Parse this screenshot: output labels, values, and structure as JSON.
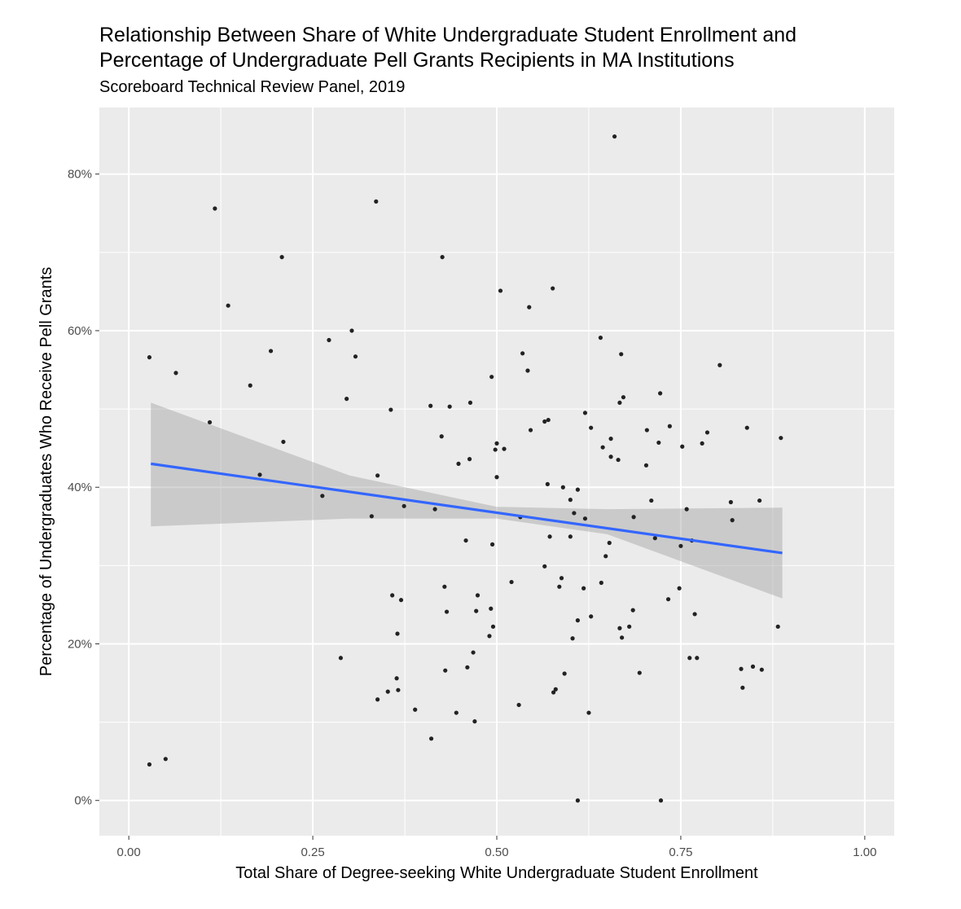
{
  "chart_data": {
    "type": "scatter",
    "title_lines": [
      "Relationship Between Share of White Undergraduate Student Enrollment and",
      "Percentage of Undergraduate Pell Grants Recipients in MA Institutions"
    ],
    "subtitle": "Scoreboard Technical Review Panel, 2019",
    "xlabel": "Total Share of Degree-seeking White Undergraduate Student Enrollment",
    "ylabel": "Percentage of Undergraduates Who Receive Pell Grants",
    "xlim": [
      -0.04,
      1.04
    ],
    "ylim": [
      -4.5,
      88.5
    ],
    "x_ticks": [
      0,
      0.25,
      0.5,
      0.75,
      1.0
    ],
    "x_tick_labels": [
      "0.00",
      "0.25",
      "0.50",
      "0.75",
      "1.00"
    ],
    "y_ticks": [
      0,
      20,
      40,
      60,
      80
    ],
    "y_tick_labels": [
      "0%",
      "20%",
      "40%",
      "60%",
      "80%"
    ],
    "grid": true,
    "legend": "none",
    "colors": {
      "panel": "#ebebeb",
      "grid": "#ffffff",
      "point": "#222222",
      "fit_line": "#3366ff",
      "confidence_band": "#999999"
    },
    "fit": {
      "x": [
        0.03,
        0.888
      ],
      "y": [
        43.0,
        31.6
      ],
      "band_x": [
        0.03,
        0.3,
        0.5,
        0.65,
        0.888
      ],
      "band_lower": [
        35.0,
        36.0,
        36.0,
        34.0,
        25.8
      ],
      "band_upper": [
        50.8,
        41.5,
        37.5,
        37.2,
        37.4
      ]
    },
    "points": [
      [
        0.028,
        56.6
      ],
      [
        0.028,
        4.6
      ],
      [
        0.05,
        5.3
      ],
      [
        0.064,
        54.6
      ],
      [
        0.11,
        48.3
      ],
      [
        0.117,
        75.6
      ],
      [
        0.135,
        63.2
      ],
      [
        0.165,
        53.0
      ],
      [
        0.178,
        41.6
      ],
      [
        0.193,
        57.4
      ],
      [
        0.208,
        69.4
      ],
      [
        0.21,
        45.8
      ],
      [
        0.263,
        38.9
      ],
      [
        0.272,
        58.8
      ],
      [
        0.288,
        18.2
      ],
      [
        0.296,
        51.3
      ],
      [
        0.303,
        60.0
      ],
      [
        0.308,
        56.7
      ],
      [
        0.33,
        36.3
      ],
      [
        0.336,
        76.5
      ],
      [
        0.338,
        41.5
      ],
      [
        0.338,
        12.9
      ],
      [
        0.352,
        13.9
      ],
      [
        0.356,
        49.9
      ],
      [
        0.358,
        26.2
      ],
      [
        0.364,
        15.6
      ],
      [
        0.365,
        21.3
      ],
      [
        0.366,
        14.1
      ],
      [
        0.37,
        25.6
      ],
      [
        0.374,
        37.6
      ],
      [
        0.389,
        11.6
      ],
      [
        0.41,
        50.4
      ],
      [
        0.411,
        7.9
      ],
      [
        0.416,
        37.2
      ],
      [
        0.425,
        46.5
      ],
      [
        0.426,
        69.4
      ],
      [
        0.429,
        27.3
      ],
      [
        0.43,
        16.6
      ],
      [
        0.432,
        24.1
      ],
      [
        0.436,
        50.3
      ],
      [
        0.445,
        11.2
      ],
      [
        0.448,
        43.0
      ],
      [
        0.458,
        33.2
      ],
      [
        0.46,
        17.0
      ],
      [
        0.463,
        43.6
      ],
      [
        0.464,
        50.8
      ],
      [
        0.468,
        18.9
      ],
      [
        0.47,
        10.1
      ],
      [
        0.472,
        24.2
      ],
      [
        0.474,
        26.2
      ],
      [
        0.49,
        21.0
      ],
      [
        0.492,
        24.5
      ],
      [
        0.493,
        54.1
      ],
      [
        0.494,
        32.7
      ],
      [
        0.495,
        22.2
      ],
      [
        0.498,
        44.8
      ],
      [
        0.5,
        45.6
      ],
      [
        0.5,
        41.3
      ],
      [
        0.505,
        65.1
      ],
      [
        0.51,
        44.9
      ],
      [
        0.52,
        27.9
      ],
      [
        0.53,
        12.2
      ],
      [
        0.532,
        36.2
      ],
      [
        0.535,
        57.1
      ],
      [
        0.542,
        54.9
      ],
      [
        0.544,
        63.0
      ],
      [
        0.546,
        47.3
      ],
      [
        0.565,
        29.9
      ],
      [
        0.565,
        48.4
      ],
      [
        0.569,
        40.4
      ],
      [
        0.57,
        48.6
      ],
      [
        0.572,
        33.7
      ],
      [
        0.576,
        65.4
      ],
      [
        0.577,
        13.8
      ],
      [
        0.58,
        14.2
      ],
      [
        0.585,
        27.3
      ],
      [
        0.588,
        28.4
      ],
      [
        0.59,
        40.0
      ],
      [
        0.592,
        16.2
      ],
      [
        0.6,
        33.7
      ],
      [
        0.6,
        38.4
      ],
      [
        0.603,
        20.7
      ],
      [
        0.605,
        36.7
      ],
      [
        0.61,
        23.0
      ],
      [
        0.61,
        39.7
      ],
      [
        0.61,
        0.0
      ],
      [
        0.618,
        27.1
      ],
      [
        0.62,
        36.0
      ],
      [
        0.62,
        49.5
      ],
      [
        0.625,
        11.2
      ],
      [
        0.628,
        23.5
      ],
      [
        0.628,
        47.6
      ],
      [
        0.641,
        59.1
      ],
      [
        0.642,
        27.8
      ],
      [
        0.644,
        45.1
      ],
      [
        0.648,
        31.2
      ],
      [
        0.653,
        32.9
      ],
      [
        0.655,
        46.2
      ],
      [
        0.655,
        43.9
      ],
      [
        0.66,
        84.8
      ],
      [
        0.665,
        43.5
      ],
      [
        0.667,
        50.8
      ],
      [
        0.667,
        22.0
      ],
      [
        0.669,
        57.0
      ],
      [
        0.67,
        20.8
      ],
      [
        0.672,
        51.5
      ],
      [
        0.68,
        22.2
      ],
      [
        0.685,
        24.3
      ],
      [
        0.686,
        36.2
      ],
      [
        0.694,
        16.3
      ],
      [
        0.703,
        42.8
      ],
      [
        0.704,
        47.3
      ],
      [
        0.71,
        38.3
      ],
      [
        0.715,
        33.5
      ],
      [
        0.72,
        45.7
      ],
      [
        0.723,
        0.0
      ],
      [
        0.722,
        52.0
      ],
      [
        0.733,
        25.7
      ],
      [
        0.735,
        47.8
      ],
      [
        0.748,
        27.1
      ],
      [
        0.75,
        32.5
      ],
      [
        0.752,
        45.2
      ],
      [
        0.758,
        37.2
      ],
      [
        0.762,
        18.2
      ],
      [
        0.765,
        33.2
      ],
      [
        0.769,
        23.8
      ],
      [
        0.772,
        18.2
      ],
      [
        0.779,
        45.6
      ],
      [
        0.786,
        47.0
      ],
      [
        0.803,
        55.6
      ],
      [
        0.818,
        38.1
      ],
      [
        0.82,
        35.8
      ],
      [
        0.832,
        16.8
      ],
      [
        0.834,
        14.4
      ],
      [
        0.84,
        47.6
      ],
      [
        0.848,
        17.1
      ],
      [
        0.857,
        38.3
      ],
      [
        0.86,
        16.7
      ],
      [
        0.882,
        22.2
      ],
      [
        0.886,
        46.3
      ]
    ]
  }
}
